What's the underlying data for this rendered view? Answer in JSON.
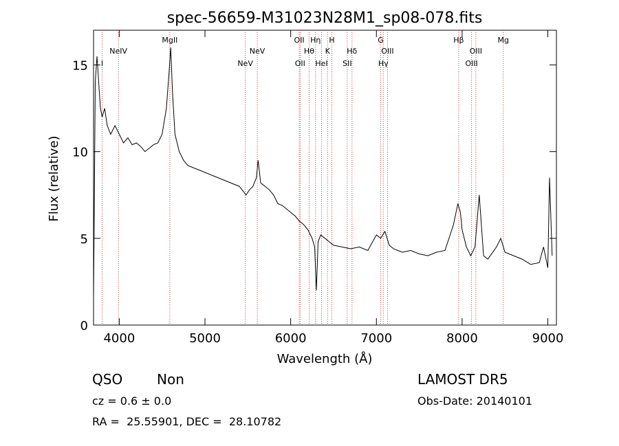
{
  "chart_data": {
    "type": "line",
    "title": "spec-56659-M31023N28M1_sp08-078.fits",
    "xlabel": "Wavelength (Å)",
    "ylabel": "Flux (relative)",
    "xlim": [
      3700,
      9100
    ],
    "ylim": [
      0,
      17
    ],
    "x_ticks": [
      4000,
      5000,
      6000,
      7000,
      8000,
      9000
    ],
    "y_ticks": [
      0,
      5,
      10,
      15
    ],
    "grid": false,
    "line_color": "#000000",
    "marker_color": "#cc3333",
    "series": [
      {
        "x": [
          3700,
          3720,
          3740,
          3760,
          3780,
          3800,
          3830,
          3860,
          3900,
          3950,
          4000,
          4050,
          4100,
          4150,
          4200,
          4250,
          4300,
          4350,
          4400,
          4450,
          4500,
          4550,
          4580,
          4600,
          4620,
          4650,
          4700,
          4750,
          4800,
          4900,
          5000,
          5100,
          5200,
          5300,
          5400,
          5480,
          5520,
          5560,
          5600,
          5620,
          5650,
          5700,
          5750,
          5800,
          5850,
          5900,
          5950,
          6000,
          6050,
          6100,
          6150,
          6200,
          6250,
          6280,
          6300,
          6320,
          6350,
          6400,
          6450,
          6500,
          6600,
          6700,
          6800,
          6900,
          7000,
          7050,
          7100,
          7150,
          7200,
          7300,
          7400,
          7500,
          7600,
          7700,
          7800,
          7900,
          7950,
          7980,
          8000,
          8050,
          8100,
          8150,
          8200,
          8250,
          8300,
          8400,
          8450,
          8500,
          8600,
          8700,
          8800,
          8900,
          8950,
          9000,
          9020,
          9050
        ],
        "y": [
          1.5,
          14.0,
          15.5,
          14.0,
          12.5,
          12.0,
          12.5,
          11.5,
          11.0,
          11.5,
          11.0,
          10.5,
          10.8,
          10.4,
          10.5,
          10.3,
          10.0,
          10.2,
          10.4,
          10.5,
          11.0,
          12.5,
          14.5,
          16.0,
          13.5,
          11.0,
          10.0,
          9.5,
          9.2,
          9.0,
          8.8,
          8.6,
          8.4,
          8.2,
          8.0,
          7.5,
          7.8,
          8.0,
          8.5,
          9.5,
          8.2,
          8.0,
          7.8,
          7.5,
          7.0,
          6.9,
          6.7,
          6.5,
          6.3,
          6.0,
          5.8,
          5.5,
          5.0,
          4.5,
          2.0,
          4.8,
          5.2,
          5.0,
          4.8,
          4.6,
          4.5,
          4.4,
          4.5,
          4.3,
          5.2,
          5.0,
          5.4,
          4.6,
          4.4,
          4.2,
          4.3,
          4.1,
          4.0,
          4.2,
          4.3,
          5.8,
          7.0,
          6.5,
          5.5,
          4.5,
          4.0,
          4.5,
          7.5,
          4.0,
          3.8,
          4.5,
          5.0,
          4.2,
          4.0,
          3.8,
          3.5,
          3.6,
          4.5,
          3.3,
          8.5,
          4.0
        ]
      }
    ],
    "lines": [
      {
        "wl": 3800,
        "label": "I",
        "row": 1
      },
      {
        "wl": 3990,
        "label": "NeIV",
        "row": 0
      },
      {
        "wl": 4590,
        "label": "MgII",
        "row": -1
      },
      {
        "wl": 5470,
        "label": "NeV",
        "row": 1
      },
      {
        "wl": 5610,
        "label": "NeV",
        "row": 0
      },
      {
        "wl": 6100,
        "label": "OII",
        "row": -1
      },
      {
        "wl": 6110,
        "label": "OII",
        "row": 1
      },
      {
        "wl": 6215,
        "label": "Hθ",
        "row": 0
      },
      {
        "wl": 6290,
        "label": "Hη",
        "row": -1
      },
      {
        "wl": 6360,
        "label": "HeI",
        "row": 1
      },
      {
        "wl": 6430,
        "label": "K",
        "row": 0
      },
      {
        "wl": 6480,
        "label": "H",
        "row": -1
      },
      {
        "wl": 6660,
        "label": "SII",
        "row": 1
      },
      {
        "wl": 6715,
        "label": "Hδ",
        "row": 0
      },
      {
        "wl": 7050,
        "label": "G",
        "row": -1
      },
      {
        "wl": 7080,
        "label": "Hγ",
        "row": 1
      },
      {
        "wl": 7130,
        "label": "OIII",
        "row": 0
      },
      {
        "wl": 7960,
        "label": "Hβ",
        "row": -1
      },
      {
        "wl": 8110,
        "label": "OIII",
        "row": 1
      },
      {
        "wl": 8160,
        "label": "OIII",
        "row": 0
      },
      {
        "wl": 8480,
        "label": "Mg",
        "row": -1
      }
    ]
  },
  "info": {
    "class": "QSO",
    "subclass": "Non",
    "survey": "LAMOST DR5",
    "cz": "cz = 0.6 ± 0.0",
    "obs_date": "Obs-Date: 20140101",
    "coords": "RA =  25.55901, DEC =  28.10782"
  }
}
